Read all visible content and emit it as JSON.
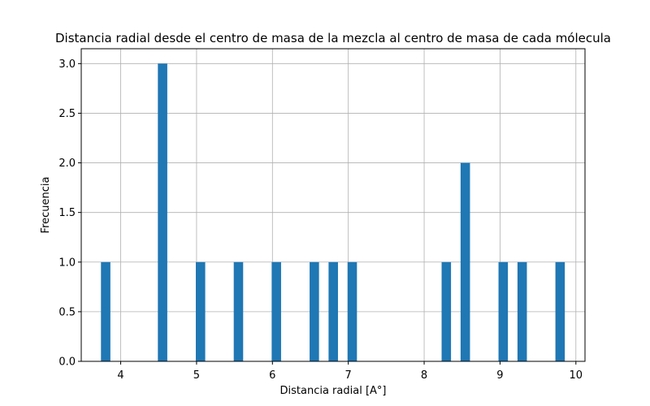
{
  "chart_data": {
    "type": "bar",
    "title": "Distancia radial desde el centro de masa de la mezcla al centro de masa de cada mólecula",
    "xlabel": "Distancia radial [A°]",
    "ylabel": "Frecuencia",
    "xlim": [
      3.48,
      10.12
    ],
    "ylim": [
      0,
      3.15
    ],
    "xticks": [
      4,
      5,
      6,
      7,
      8,
      9,
      10
    ],
    "yticks": [
      0.0,
      0.5,
      1.0,
      1.5,
      2.0,
      2.5,
      3.0
    ],
    "ytick_labels": [
      "0.0",
      "0.5",
      "1.0",
      "1.5",
      "2.0",
      "2.5",
      "3.0"
    ],
    "grid": true,
    "bar_color": "#1f77b4",
    "bin_width": 0.124,
    "bins": [
      {
        "x": 3.74,
        "value": 1
      },
      {
        "x": 4.49,
        "value": 3
      },
      {
        "x": 4.99,
        "value": 1
      },
      {
        "x": 5.49,
        "value": 1
      },
      {
        "x": 5.99,
        "value": 1
      },
      {
        "x": 6.49,
        "value": 1
      },
      {
        "x": 6.74,
        "value": 1
      },
      {
        "x": 6.99,
        "value": 1
      },
      {
        "x": 8.23,
        "value": 1
      },
      {
        "x": 8.48,
        "value": 2
      },
      {
        "x": 8.98,
        "value": 1
      },
      {
        "x": 9.23,
        "value": 1
      },
      {
        "x": 9.73,
        "value": 1
      }
    ]
  }
}
